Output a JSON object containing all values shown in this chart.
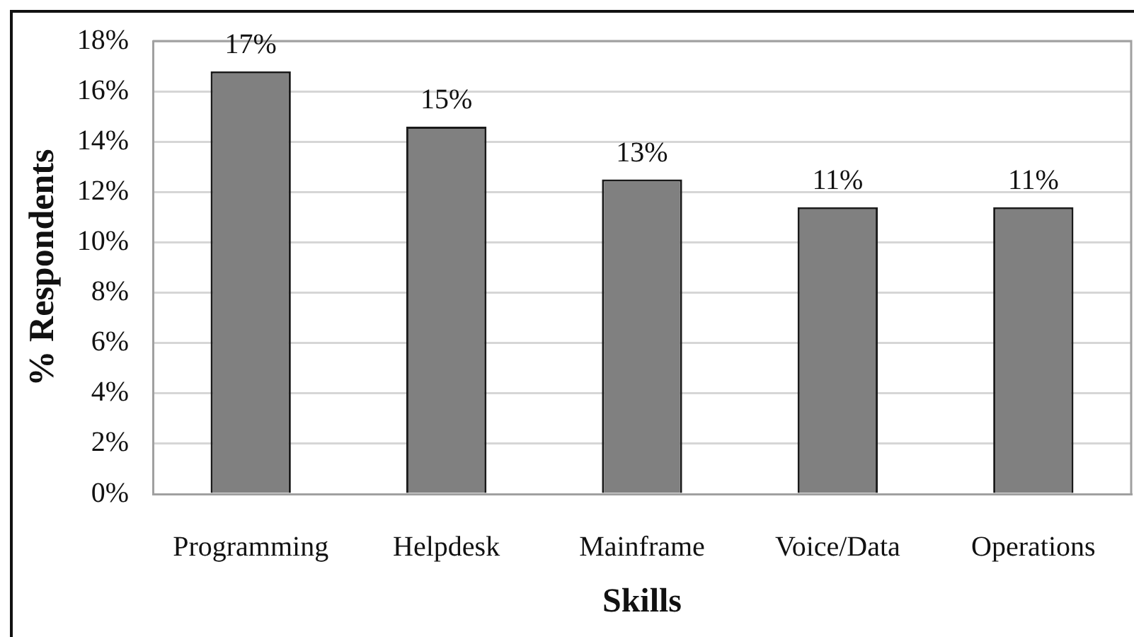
{
  "chart_data": {
    "type": "bar",
    "xlabel": "Skills",
    "ylabel": "% Respondents",
    "categories": [
      "Programming",
      "Helpdesk",
      "Mainframe",
      "Voice/Data",
      "Operations"
    ],
    "values": [
      16.8,
      14.6,
      12.5,
      11.4,
      11.4
    ],
    "color": "#808080",
    "value_labels": [
      "17%",
      "15%",
      "13%",
      "11%",
      "11%"
    ],
    "ylim": [
      0,
      18
    ],
    "yticks": [
      {
        "value": 0,
        "label": "0%"
      },
      {
        "value": 2,
        "label": "2%"
      },
      {
        "value": 4,
        "label": "4%"
      },
      {
        "value": 6,
        "label": "6%"
      },
      {
        "value": 8,
        "label": "8%"
      },
      {
        "value": 10,
        "label": "10%"
      },
      {
        "value": 12,
        "label": "12%"
      },
      {
        "value": 14,
        "label": "14%"
      },
      {
        "value": 16,
        "label": "16%"
      },
      {
        "value": 18,
        "label": "18%"
      }
    ],
    "grid": "y"
  }
}
